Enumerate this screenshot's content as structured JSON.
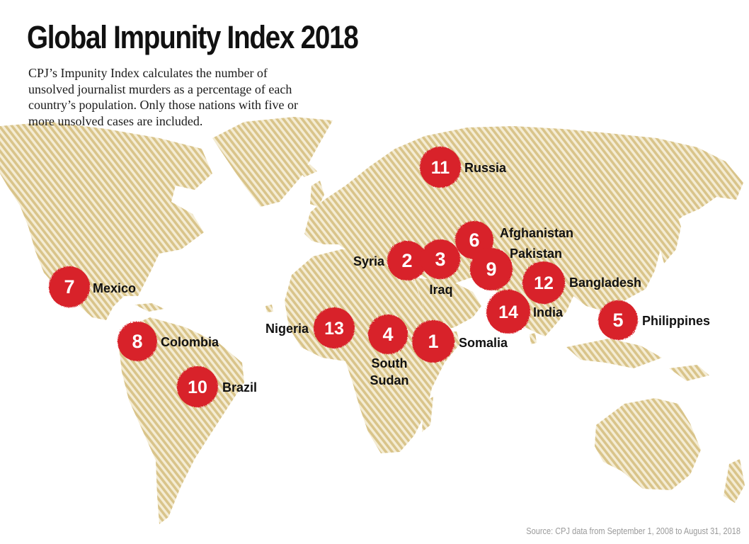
{
  "title": "Global Impunity Index 2018",
  "description": "CPJ’s Impunity Index calculates the number of unsolved journalist murders as a percentage of each country’s population. Only those nations with five or more unsolved cases are included.",
  "source": "Source: CPJ data from September 1, 2008 to August 31, 2018",
  "colors": {
    "land": "#d9c48a",
    "marker": "#d8222a",
    "marker_text": "#ffffff",
    "label_text": "#111111"
  },
  "markers": [
    {
      "rank": "1",
      "country": "Somalia"
    },
    {
      "rank": "2",
      "country": "Syria"
    },
    {
      "rank": "3",
      "country": "Iraq"
    },
    {
      "rank": "4",
      "country": "South Sudan",
      "lines": [
        "South",
        "Sudan"
      ]
    },
    {
      "rank": "5",
      "country": "Philippines"
    },
    {
      "rank": "6",
      "country": "Afghanistan"
    },
    {
      "rank": "7",
      "country": "Mexico"
    },
    {
      "rank": "8",
      "country": "Colombia"
    },
    {
      "rank": "9",
      "country": "Pakistan"
    },
    {
      "rank": "10",
      "country": "Brazil"
    },
    {
      "rank": "11",
      "country": "Russia"
    },
    {
      "rank": "12",
      "country": "Bangladesh"
    },
    {
      "rank": "13",
      "country": "Nigeria"
    },
    {
      "rank": "14",
      "country": "India"
    }
  ]
}
